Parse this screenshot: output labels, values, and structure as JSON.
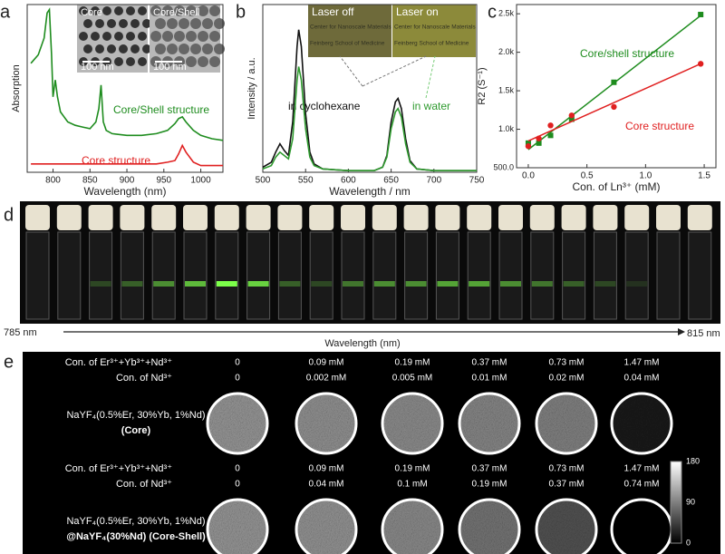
{
  "chart_data": [
    {
      "type": "line",
      "label": "a",
      "xlabel": "Wavelength (nm)",
      "ylabel": "Absorption",
      "x": [
        770,
        780,
        788,
        792,
        795,
        798,
        800,
        803,
        806,
        810,
        820,
        830,
        840,
        850,
        858,
        862,
        865,
        868,
        872,
        880,
        900,
        920,
        940,
        955,
        965,
        970,
        975,
        980,
        990,
        1000,
        1015,
        1030
      ],
      "xlim": [
        765,
        1030
      ],
      "xticks": [
        800,
        850,
        900,
        950,
        1000
      ],
      "ylim": [
        0,
        1
      ],
      "series": [
        {
          "name": "Core/Shell structure",
          "color": "#1e8c1e",
          "values": [
            0.65,
            0.7,
            0.8,
            0.95,
            0.97,
            0.7,
            0.45,
            0.55,
            0.45,
            0.36,
            0.3,
            0.28,
            0.27,
            0.26,
            0.3,
            0.38,
            0.52,
            0.3,
            0.25,
            0.23,
            0.22,
            0.22,
            0.23,
            0.25,
            0.29,
            0.32,
            0.33,
            0.3,
            0.25,
            0.22,
            0.2,
            0.19
          ]
        },
        {
          "name": "Core structure",
          "color": "#e02020",
          "values": [
            0.05,
            0.05,
            0.05,
            0.05,
            0.05,
            0.05,
            0.05,
            0.05,
            0.05,
            0.05,
            0.05,
            0.05,
            0.05,
            0.05,
            0.05,
            0.05,
            0.05,
            0.05,
            0.05,
            0.05,
            0.05,
            0.05,
            0.05,
            0.06,
            0.07,
            0.11,
            0.16,
            0.12,
            0.06,
            0.04,
            0.04,
            0.04
          ]
        }
      ],
      "insets": [
        "Core",
        "Core/Shell"
      ],
      "scale_bar": "100 nm"
    },
    {
      "type": "line",
      "label": "b",
      "xlabel": "Wavelength / nm",
      "ylabel": "Intensity / a.u.",
      "x": [
        500,
        510,
        515,
        520,
        525,
        530,
        535,
        540,
        542,
        545,
        550,
        555,
        560,
        570,
        600,
        630,
        640,
        645,
        650,
        655,
        658,
        662,
        667,
        672,
        680,
        700,
        750
      ],
      "xlim": [
        500,
        750
      ],
      "xticks": [
        500,
        550,
        600,
        650,
        700,
        750
      ],
      "ylim": [
        0,
        1
      ],
      "series": [
        {
          "name": "in cyclohexane",
          "color": "#111111",
          "values": [
            0.03,
            0.06,
            0.12,
            0.17,
            0.13,
            0.1,
            0.3,
            0.75,
            0.85,
            0.75,
            0.35,
            0.12,
            0.05,
            0.02,
            0.01,
            0.01,
            0.03,
            0.1,
            0.3,
            0.42,
            0.44,
            0.38,
            0.2,
            0.07,
            0.02,
            0.01,
            0.01
          ]
        },
        {
          "name": "in water",
          "color": "#2e9a2e",
          "values": [
            0.02,
            0.04,
            0.09,
            0.12,
            0.1,
            0.08,
            0.2,
            0.55,
            0.63,
            0.55,
            0.26,
            0.09,
            0.04,
            0.02,
            0.01,
            0.01,
            0.03,
            0.09,
            0.26,
            0.36,
            0.38,
            0.33,
            0.17,
            0.06,
            0.02,
            0.01,
            0.01
          ]
        }
      ],
      "insets": [
        "Laser off",
        "Laser on"
      ],
      "photo_text": [
        "Center for Nanoscale Materials",
        "Feinberg School of Medicine"
      ]
    },
    {
      "type": "scatter",
      "label": "c",
      "xlabel": "Con. of Ln³⁺ (mM)",
      "ylabel": "R2 (S⁻¹)",
      "x": [
        0,
        0.09,
        0.19,
        0.37,
        0.73,
        1.47
      ],
      "xlim": [
        -0.1,
        1.6
      ],
      "xticks": [
        {
          "value": 0,
          "label": "0.0"
        },
        0.5,
        {
          "value": 1,
          "label": "1.0"
        },
        1.5
      ],
      "ylim": [
        500,
        2620
      ],
      "yticks": [
        {
          "value": 500,
          "label": "500.0"
        },
        {
          "value": 1000,
          "label": "1.0k"
        },
        {
          "value": 1500,
          "label": "1.5k"
        },
        {
          "value": 2000,
          "label": "2.0k"
        },
        {
          "value": 2500,
          "label": "2.5k"
        }
      ],
      "series": [
        {
          "name": "Core/shell structure",
          "color": "#1e8c1e",
          "marker": "square",
          "values": [
            820,
            820,
            920,
            1130,
            1610,
            2490
          ]
        },
        {
          "name": "Core structure",
          "color": "#e02020",
          "marker": "circle",
          "values": [
            780,
            880,
            1050,
            1180,
            1290,
            1850
          ]
        }
      ]
    }
  ],
  "panel_d": {
    "label": "d",
    "start": "785 nm",
    "end": "815 nm",
    "axis": "Wavelength (nm)"
  },
  "panel_e": {
    "label": "e",
    "blocks": [
      {
        "row1": "Con. of Er³⁺+Yb³⁺+Nd³⁺",
        "row2": "Con. of Nd³⁺",
        "sample": "NaYF₄(0.5%Er, 30%Yb, 1%Nd)",
        "sample2": "(Core)",
        "er": [
          "0",
          "0.09 mM",
          "0.19 mM",
          "0.37 mM",
          "0.73 mM",
          "1.47 mM"
        ],
        "nd": [
          "0",
          "0.002 mM",
          "0.005 mM",
          "0.01 mM",
          "0.02 mM",
          "0.04 mM"
        ]
      },
      {
        "row1": "Con. of Er³⁺+Yb³⁺+Nd³⁺",
        "row2": "Con. of Nd³⁺",
        "sample": "NaYF₄(0.5%Er, 30%Yb, 1%Nd)",
        "sample2": "@NaYF₄(30%Nd) (Core-Shell)",
        "er": [
          "0",
          "0.09 mM",
          "0.19 mM",
          "0.37 mM",
          "0.73 mM",
          "1.47 mM"
        ],
        "nd": [
          "0",
          "0.04 mM",
          "0.1 mM",
          "0.19 mM",
          "0.37 mM",
          "0.74 mM"
        ]
      }
    ],
    "colorbar": [
      180,
      90,
      0
    ]
  }
}
